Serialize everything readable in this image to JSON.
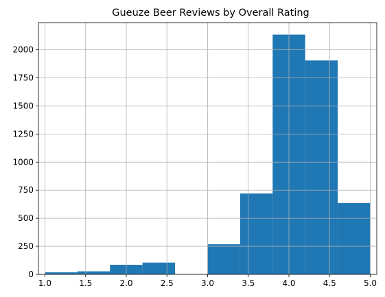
{
  "chart_data": {
    "type": "bar",
    "title": "Gueuze Beer Reviews by Overall Rating",
    "xlabel": "",
    "ylabel": "",
    "bins": [
      {
        "start": 1.0,
        "end": 1.4,
        "count": 18
      },
      {
        "start": 1.4,
        "end": 1.8,
        "count": 27
      },
      {
        "start": 1.8,
        "end": 2.2,
        "count": 85
      },
      {
        "start": 2.2,
        "end": 2.6,
        "count": 105
      },
      {
        "start": 2.6,
        "end": 3.0,
        "count": 0
      },
      {
        "start": 3.0,
        "end": 3.4,
        "count": 268
      },
      {
        "start": 3.4,
        "end": 3.8,
        "count": 720
      },
      {
        "start": 3.8,
        "end": 4.2,
        "count": 2135
      },
      {
        "start": 4.2,
        "end": 4.6,
        "count": 1905
      },
      {
        "start": 4.6,
        "end": 5.0,
        "count": 635
      }
    ],
    "xlim": [
      0.92,
      5.08
    ],
    "ylim": [
      0,
      2242
    ],
    "xticks": [
      1.0,
      1.5,
      2.0,
      2.5,
      3.0,
      3.5,
      4.0,
      4.5,
      5.0
    ],
    "xtick_labels": [
      "1.0",
      "1.5",
      "2.0",
      "2.5",
      "3.0",
      "3.5",
      "4.0",
      "4.5",
      "5.0"
    ],
    "yticks": [
      0,
      250,
      500,
      750,
      1000,
      1250,
      1500,
      1750,
      2000
    ],
    "ytick_labels": [
      "0",
      "250",
      "500",
      "750",
      "1000",
      "1250",
      "1500",
      "1750",
      "2000"
    ],
    "grid": true,
    "bar_color": "#1f77b4"
  }
}
